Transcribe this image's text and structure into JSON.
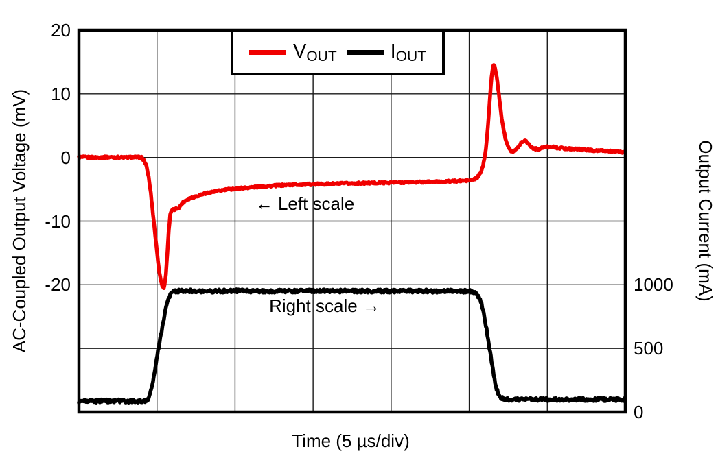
{
  "chart_data": {
    "type": "line",
    "description": "Load transient response oscilloscope plot",
    "x_axis": {
      "label": "Time (5 µs/div)",
      "divisions": 7,
      "microseconds_per_division": 5,
      "range_us": [
        0,
        35
      ]
    },
    "left_axis": {
      "label": "AC-Coupled Output Voltage (mV)",
      "range": [
        -40,
        20
      ],
      "gridline_step": 10,
      "ticks": [
        {
          "value": 20,
          "label": "20"
        },
        {
          "value": 10,
          "label": "10"
        },
        {
          "value": 0,
          "label": "0"
        },
        {
          "value": -10,
          "label": "-10"
        },
        {
          "value": -20,
          "label": "-20"
        }
      ]
    },
    "right_axis": {
      "label": "Output Current (mA)",
      "range": [
        0,
        3000
      ],
      "gridline_step": 500,
      "ticks": [
        {
          "value": 1000,
          "label": "1000"
        },
        {
          "value": 500,
          "label": "500"
        },
        {
          "value": 0,
          "label": "0"
        }
      ]
    },
    "legend": {
      "items": [
        {
          "series": "vout",
          "main": "V",
          "sub": "OUT",
          "color": "#f00000"
        },
        {
          "series": "iout",
          "main": "I",
          "sub": "OUT",
          "color": "#000000"
        }
      ]
    },
    "annotations": [
      {
        "text": "← Left scale",
        "t_us": 14.4,
        "value": -7.5,
        "axis": "left"
      },
      {
        "text": "Right scale →",
        "t_us": 15.7,
        "value": 830,
        "axis": "right"
      }
    ],
    "colors": {
      "grid": "#1a1a1a",
      "frame": "#000000",
      "vout": "#f00000",
      "iout": "#000000"
    },
    "series": [
      {
        "name": "vout",
        "axis": "left",
        "color": "#f00000",
        "noise": 0.15,
        "points": [
          [
            0,
            0.05
          ],
          [
            1,
            0
          ],
          [
            2,
            0.05
          ],
          [
            3,
            0
          ],
          [
            3.6,
            0.05
          ],
          [
            4.0,
            0
          ],
          [
            4.15,
            -0.4
          ],
          [
            4.3,
            -1.2
          ],
          [
            4.45,
            -2.8
          ],
          [
            4.6,
            -5.5
          ],
          [
            4.75,
            -9.0
          ],
          [
            4.9,
            -12.5
          ],
          [
            5.05,
            -16.0
          ],
          [
            5.2,
            -18.8
          ],
          [
            5.35,
            -20.3
          ],
          [
            5.45,
            -20.5
          ],
          [
            5.55,
            -19.0
          ],
          [
            5.65,
            -15.5
          ],
          [
            5.75,
            -11.5
          ],
          [
            5.85,
            -9.0
          ],
          [
            5.95,
            -8.3
          ],
          [
            6.1,
            -8.2
          ],
          [
            6.3,
            -8.0
          ],
          [
            6.45,
            -7.8
          ],
          [
            6.6,
            -7.2
          ],
          [
            6.8,
            -6.8
          ],
          [
            7.1,
            -6.4
          ],
          [
            7.5,
            -6.1
          ],
          [
            8.0,
            -5.7
          ],
          [
            8.6,
            -5.4
          ],
          [
            9.3,
            -5.1
          ],
          [
            10,
            -4.9
          ],
          [
            11,
            -4.7
          ],
          [
            12,
            -4.5
          ],
          [
            13.5,
            -4.3
          ],
          [
            15,
            -4.2
          ],
          [
            17,
            -4.1
          ],
          [
            19,
            -4.0
          ],
          [
            21,
            -3.9
          ],
          [
            23,
            -3.8
          ],
          [
            24.3,
            -3.7
          ],
          [
            25.1,
            -3.6
          ],
          [
            25.45,
            -3.3
          ],
          [
            25.7,
            -2.6
          ],
          [
            25.9,
            -1.2
          ],
          [
            26.05,
            1.0
          ],
          [
            26.2,
            5.0
          ],
          [
            26.35,
            10.0
          ],
          [
            26.45,
            13.2
          ],
          [
            26.55,
            14.6
          ],
          [
            26.65,
            14.2
          ],
          [
            26.8,
            12.0
          ],
          [
            26.95,
            8.8
          ],
          [
            27.1,
            5.8
          ],
          [
            27.3,
            3.2
          ],
          [
            27.5,
            1.7
          ],
          [
            27.7,
            1.0
          ],
          [
            27.85,
            0.9
          ],
          [
            28.1,
            1.5
          ],
          [
            28.35,
            2.4
          ],
          [
            28.55,
            2.7
          ],
          [
            28.75,
            2.3
          ],
          [
            28.95,
            1.7
          ],
          [
            29.15,
            1.4
          ],
          [
            29.45,
            1.3
          ],
          [
            29.8,
            1.6
          ],
          [
            30.2,
            1.7
          ],
          [
            30.7,
            1.5
          ],
          [
            31.3,
            1.4
          ],
          [
            32,
            1.3
          ],
          [
            33,
            1.1
          ],
          [
            34,
            1.0
          ],
          [
            35,
            0.8
          ]
        ]
      },
      {
        "name": "iout",
        "axis": "right",
        "color": "#000000",
        "noise": 13,
        "points": [
          [
            0,
            85
          ],
          [
            1,
            86
          ],
          [
            2,
            88
          ],
          [
            3,
            85
          ],
          [
            4,
            84
          ],
          [
            4.3,
            88
          ],
          [
            4.45,
            105
          ],
          [
            4.6,
            160
          ],
          [
            4.75,
            250
          ],
          [
            4.9,
            360
          ],
          [
            5.05,
            470
          ],
          [
            5.2,
            570
          ],
          [
            5.35,
            670
          ],
          [
            5.5,
            770
          ],
          [
            5.65,
            855
          ],
          [
            5.8,
            910
          ],
          [
            5.95,
            935
          ],
          [
            6.1,
            945
          ],
          [
            6.3,
            950
          ],
          [
            7,
            952
          ],
          [
            8,
            950
          ],
          [
            10,
            952
          ],
          [
            12,
            950
          ],
          [
            15,
            953
          ],
          [
            18,
            950
          ],
          [
            21,
            952
          ],
          [
            23,
            950
          ],
          [
            24.5,
            950
          ],
          [
            25.05,
            948
          ],
          [
            25.3,
            940
          ],
          [
            25.5,
            925
          ],
          [
            25.7,
            885
          ],
          [
            25.85,
            820
          ],
          [
            26.0,
            730
          ],
          [
            26.15,
            620
          ],
          [
            26.3,
            500
          ],
          [
            26.45,
            380
          ],
          [
            26.6,
            270
          ],
          [
            26.75,
            185
          ],
          [
            26.9,
            135
          ],
          [
            27.05,
            110
          ],
          [
            27.25,
            100
          ],
          [
            27.6,
            98
          ],
          [
            28.5,
            100
          ],
          [
            30,
            98
          ],
          [
            32,
            100
          ],
          [
            34,
            98
          ],
          [
            35,
            99
          ]
        ]
      }
    ]
  }
}
